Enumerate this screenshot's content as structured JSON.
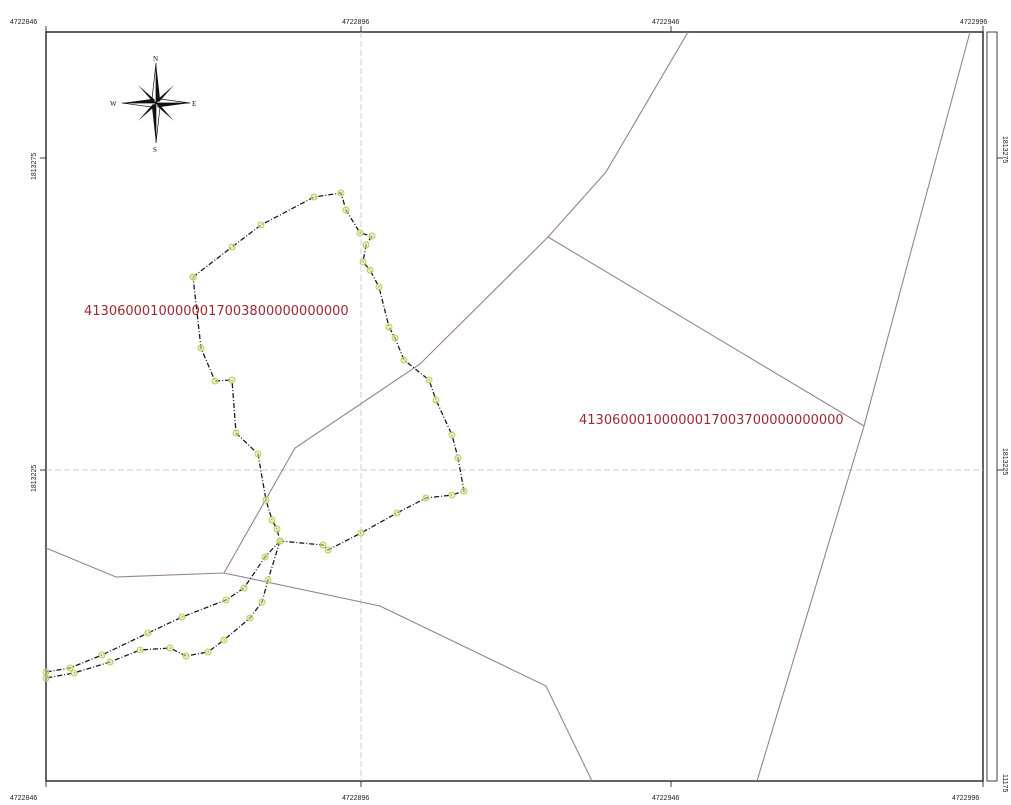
{
  "map": {
    "x_ticks_top": [
      "4722846",
      "4722896",
      "4722946",
      "4722996"
    ],
    "x_ticks_bottom": [
      "4722846",
      "4722896",
      "4722946",
      "4722996"
    ],
    "y_ticks_left": [
      "1813275",
      "1813225"
    ],
    "y_ticks_right": [
      "1813275",
      "1813225",
      "11175"
    ],
    "parcels": [
      {
        "id": "41306000100000017003800000000000"
      },
      {
        "id": "41306000100000017003700000000000"
      }
    ],
    "compass": {
      "n": "N",
      "s": "S",
      "e": "E",
      "w": "W"
    },
    "colors": {
      "boundary": "#9a7f96",
      "track": "#1a1a1a",
      "vertex": "#c9dc7a",
      "label": "#9b2b33",
      "frame": "#111111",
      "grid": "#bbbbbb"
    }
  }
}
